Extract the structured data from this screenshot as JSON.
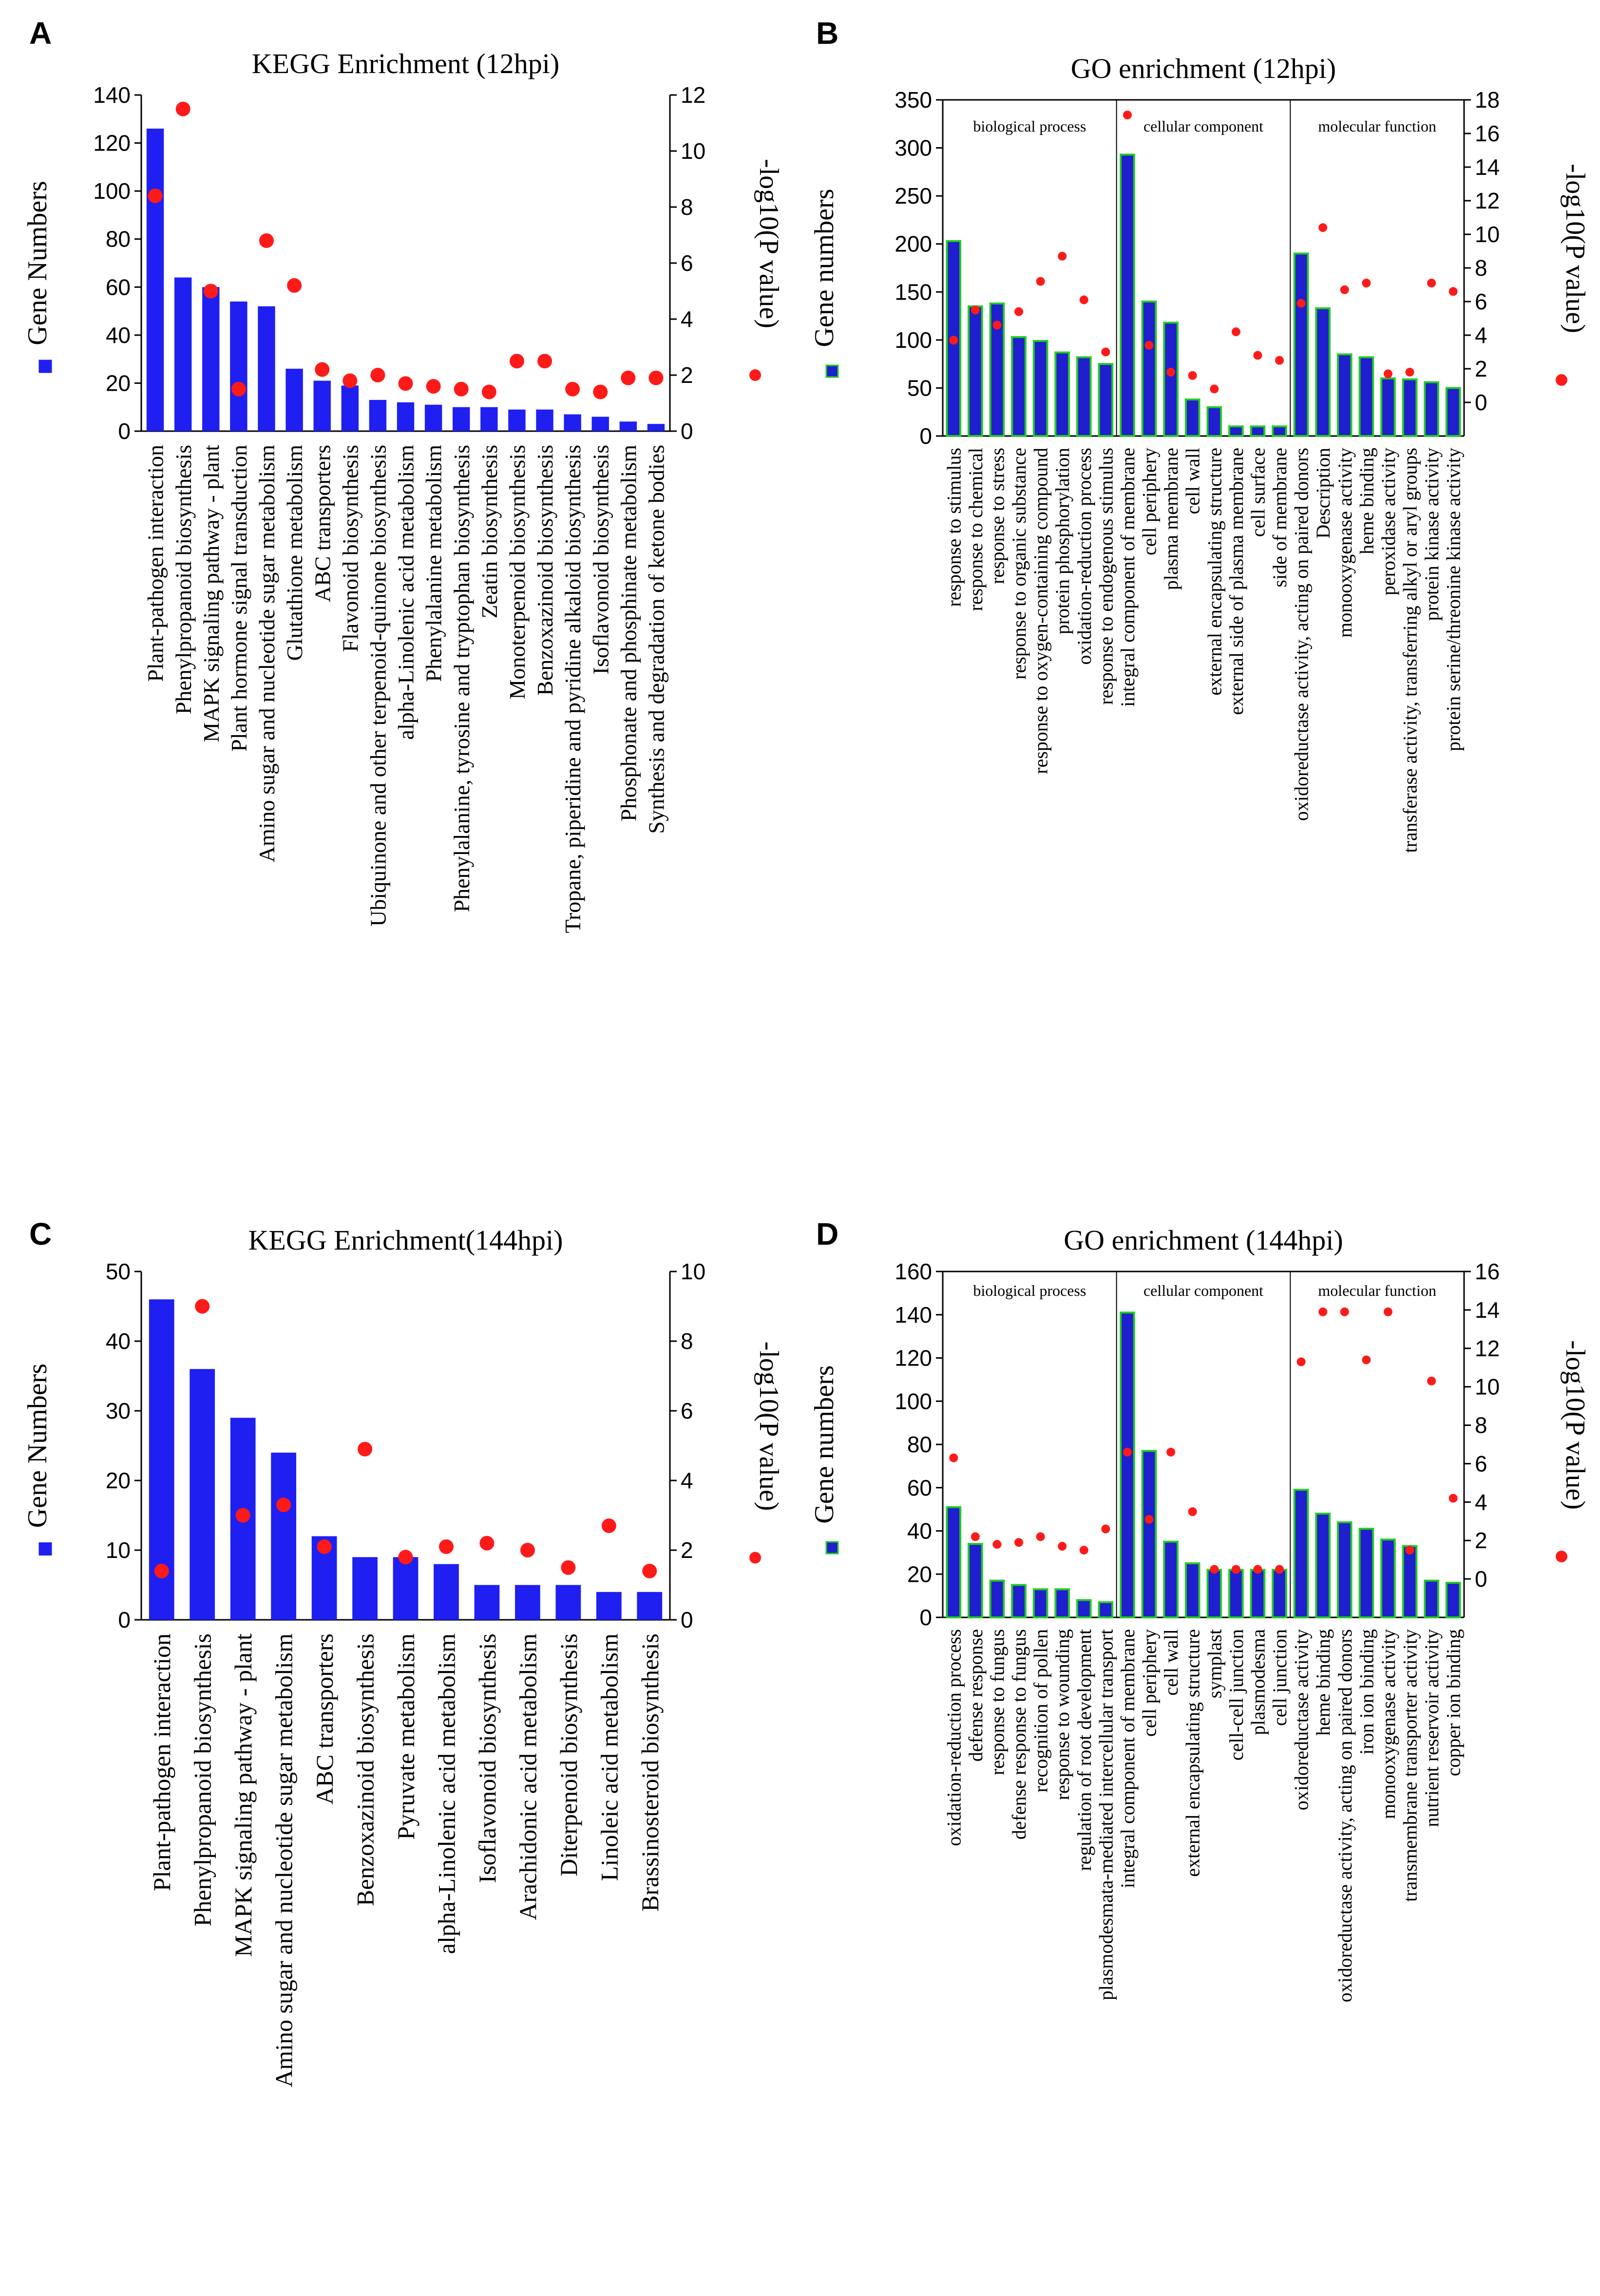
{
  "chart_data": [
    {
      "panel": "A",
      "type": "bar",
      "title": "KEGG Enrichment (12hpi)",
      "ylabel": "Gene Numbers",
      "y2label": "-log10(P value)",
      "ylim": [
        0,
        140
      ],
      "yticks": [
        0,
        20,
        40,
        60,
        80,
        100,
        120,
        140
      ],
      "y2lim": [
        0,
        12
      ],
      "y2ticks": [
        0,
        2,
        4,
        6,
        8,
        10,
        12
      ],
      "bar_color": "#1f1ff2",
      "bar_edge": "#1f1ff2",
      "dot_color": "#ff1a1a",
      "categories": [
        "Plant-pathogen interaction",
        "Phenylpropanoid biosynthesis",
        "MAPK signaling pathway - plant",
        "Plant hormone signal transduction",
        "Amino sugar and nucleotide sugar metabolism",
        "Glutathione metabolism",
        "ABC transporters",
        "Flavonoid biosynthesis",
        "Ubiquinone and other terpenoid-quinone biosynthesis",
        "alpha-Linolenic acid metabolism",
        "Phenylalanine metabolism",
        "Phenylalanine, tyrosine and tryptophan biosynthesis",
        "Zeatin biosynthesis",
        "Monoterpenoid biosynthesis",
        "Benzoxazinoid biosynthesis",
        "Tropane, piperidine and pyridine alkaloid biosynthesis",
        "Isoflavonoid biosynthesis",
        "Phosphonate and phosphinate metabolism",
        "Synthesis and degradation of ketone bodies"
      ],
      "series": [
        {
          "name": "Gene Numbers",
          "axis": "left",
          "kind": "bar",
          "values": [
            126,
            64,
            60,
            54,
            52,
            26,
            21,
            19,
            13,
            12,
            11,
            10,
            10,
            9,
            9,
            7,
            6,
            4,
            3
          ]
        },
        {
          "name": "-log10(P value)",
          "axis": "right",
          "kind": "dot",
          "values": [
            8.4,
            11.5,
            5.0,
            1.5,
            6.8,
            5.2,
            2.2,
            1.8,
            2.0,
            1.7,
            1.6,
            1.5,
            1.4,
            2.5,
            2.5,
            1.5,
            1.4,
            1.9,
            1.9
          ]
        }
      ]
    },
    {
      "panel": "B",
      "type": "bar",
      "title": "GO enrichment (12hpi)",
      "ylabel": "Gene numbers",
      "y2label": "-log10(P value)",
      "ylim": [
        0,
        350
      ],
      "yticks": [
        0,
        50,
        100,
        150,
        200,
        250,
        300,
        350
      ],
      "y2lim": [
        -2,
        18
      ],
      "y2ticks": [
        0,
        2,
        4,
        6,
        8,
        10,
        12,
        14,
        16,
        18
      ],
      "bar_color": "#1f1fd0",
      "bar_edge": "#22cc22",
      "dot_color": "#ff1a1a",
      "sections": [
        {
          "label": "biological process",
          "start": 0,
          "end": 9
        },
        {
          "label": "cellular component",
          "start": 9,
          "end": 18
        },
        {
          "label": "molecular function",
          "start": 18,
          "end": 27
        }
      ],
      "categories": [
        "response to stimulus",
        "response to chemical",
        "response to stress",
        "response to organic substance",
        "response to oxygen-containing compound",
        "protein phosphorylation",
        "oxidation-reduction process",
        "response to endogenous stimulus",
        "integral component of membrane",
        "cell periphery",
        "plasma membrane",
        "cell wall",
        "external encapsulating structure",
        "external side of plasma membrane",
        "cell surface",
        "side of membrane",
        "oxidoreductase activity, acting on paired donors",
        "Description",
        "monooxygenase activity",
        "heme binding",
        "peroxidase activity",
        "transferase activity, transferring alkyl or aryl groups",
        "protein kinase activity",
        "protein serine/threonine kinase activity"
      ],
      "series": [
        {
          "name": "Gene numbers",
          "axis": "left",
          "kind": "bar",
          "values": [
            203,
            135,
            138,
            103,
            99,
            87,
            82,
            75,
            293,
            140,
            118,
            38,
            30,
            10,
            10,
            10,
            190,
            133,
            85,
            82,
            60,
            59,
            56,
            50
          ]
        },
        {
          "name": "-log10(P value)",
          "axis": "right",
          "kind": "dot",
          "values": [
            3.7,
            5.5,
            4.6,
            5.4,
            7.2,
            8.7,
            6.1,
            3.0,
            17.1,
            3.4,
            1.8,
            1.6,
            0.8,
            4.2,
            2.8,
            2.5,
            5.9,
            10.4,
            6.7,
            7.1,
            1.7,
            1.8,
            7.1,
            6.6
          ]
        }
      ]
    },
    {
      "panel": "C",
      "type": "bar",
      "title": "KEGG Enrichment(144hpi)",
      "ylabel": "Gene Numbers",
      "y2label": "-log10(P value)",
      "ylim": [
        0,
        50
      ],
      "yticks": [
        0,
        10,
        20,
        30,
        40,
        50
      ],
      "y2lim": [
        0,
        10
      ],
      "y2ticks": [
        0,
        2,
        4,
        6,
        8,
        10
      ],
      "bar_color": "#1f1ff2",
      "bar_edge": "#1f1ff2",
      "dot_color": "#ff1a1a",
      "categories": [
        "Plant-pathogen interaction",
        "Phenylpropanoid biosynthesis",
        "MAPK signaling pathway - plant",
        "Amino sugar and nucleotide sugar metabolism",
        "ABC transporters",
        "Benzoxazinoid biosynthesis",
        "Pyruvate metabolism",
        "alpha-Linolenic acid metabolism",
        "Isoflavonoid biosynthesis",
        "Arachidonic acid metabolism",
        "Diterpenoid biosynthesis",
        "Linoleic acid metabolism",
        "Brassinosteroid biosynthesis"
      ],
      "series": [
        {
          "name": "Gene Numbers",
          "axis": "left",
          "kind": "bar",
          "values": [
            46,
            36,
            29,
            24,
            12,
            9,
            9,
            8,
            5,
            5,
            5,
            4,
            4
          ]
        },
        {
          "name": "-log10(P value)",
          "axis": "right",
          "kind": "dot",
          "values": [
            1.4,
            9.0,
            3.0,
            3.3,
            2.1,
            4.9,
            1.8,
            2.1,
            2.2,
            2.0,
            1.5,
            2.7,
            1.4
          ]
        }
      ]
    },
    {
      "panel": "D",
      "type": "bar",
      "title": "GO enrichment (144hpi)",
      "ylabel": "Gene numbers",
      "y2label": "-log10(P value)",
      "ylim": [
        0,
        160
      ],
      "yticks": [
        0,
        20,
        40,
        60,
        80,
        100,
        120,
        140,
        160
      ],
      "y2lim": [
        -2,
        16
      ],
      "y2ticks": [
        0,
        2,
        4,
        6,
        8,
        10,
        12,
        14,
        16
      ],
      "bar_color": "#1f1fd0",
      "bar_edge": "#22cc22",
      "dot_color": "#ff1a1a",
      "sections": [
        {
          "label": "biological process",
          "start": 0,
          "end": 9
        },
        {
          "label": "cellular component",
          "start": 9,
          "end": 18
        },
        {
          "label": "molecular function",
          "start": 18,
          "end": 27
        }
      ],
      "categories": [
        "oxidation-reduction process",
        "defense response",
        "response to fungus",
        "defense response to fungus",
        "recognition of pollen",
        "response to wounding",
        "regulation of root development",
        "plasmodesmata-mediated intercellular transport",
        "integral component of membrane",
        "cell periphery",
        "cell wall",
        "external encapsulating structure",
        "symplast",
        "cell-cell junction",
        "plasmodesma",
        "cell junction",
        "oxidoreductase activity",
        "heme binding",
        "oxidoreductase activity, acting on paired donors",
        "iron ion binding",
        "monooxygenase activity",
        "transmembrane transporter activity",
        "nutrient reservoir activity",
        "copper ion binding"
      ],
      "series": [
        {
          "name": "Gene numbers",
          "axis": "left",
          "kind": "bar",
          "values": [
            51,
            34,
            17,
            15,
            13,
            13,
            8,
            7,
            141,
            77,
            35,
            25,
            22,
            22,
            22,
            22,
            59,
            48,
            44,
            41,
            36,
            33,
            17,
            16
          ]
        },
        {
          "name": "-log10(P value)",
          "axis": "right",
          "kind": "dot",
          "values": [
            6.3,
            2.2,
            1.8,
            1.9,
            2.2,
            1.7,
            1.5,
            2.6,
            6.6,
            3.1,
            6.6,
            3.5,
            0.5,
            0.5,
            0.5,
            0.5,
            11.3,
            13.9,
            13.9,
            11.4,
            13.9,
            1.5,
            10.3,
            4.2
          ]
        }
      ]
    }
  ]
}
